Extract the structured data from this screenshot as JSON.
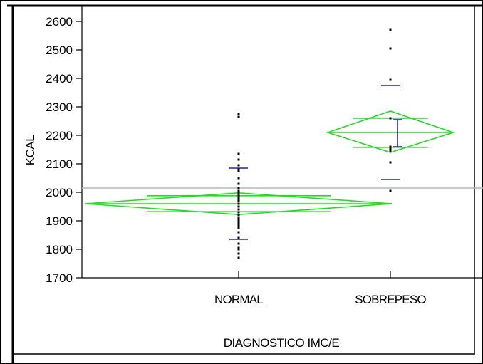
{
  "chart_data": {
    "type": "scatter",
    "xlabel": "DIAGNOSTICO IMC/E",
    "ylabel": "KCAL",
    "ylim": [
      1700,
      2600
    ],
    "yticks": [
      1700,
      1800,
      1900,
      2000,
      2100,
      2200,
      2300,
      2400,
      2500,
      2600
    ],
    "grand_mean": 2015,
    "categories": [
      "NORMAL",
      "SOBREPESO"
    ],
    "groups": [
      {
        "category": "NORMAL",
        "points": [
          1770,
          1785,
          1800,
          1805,
          1820,
          1840,
          1860,
          1875,
          1880,
          1885,
          1890,
          1893,
          1897,
          1900,
          1903,
          1910,
          1920,
          1930,
          1940,
          1950,
          1960,
          1970,
          1975,
          1980,
          1985,
          1990,
          1995,
          2000,
          2005,
          2015,
          2030,
          2050,
          2075,
          2080,
          2095,
          2115,
          2135,
          2265,
          2275
        ],
        "mean": 1960,
        "ci_upper": 1998,
        "ci_lower": 1922,
        "overlap_upper": 1988,
        "overlap_lower": 1932,
        "sd_upper": 2085,
        "sd_lower": 1835
      },
      {
        "category": "SOBREPESO",
        "points": [
          2005,
          2105,
          2145,
          2150,
          2155,
          2160,
          2260,
          2395,
          2505,
          2570
        ],
        "mean": 2210,
        "ci_upper": 2285,
        "ci_lower": 2140,
        "overlap_upper": 2260,
        "overlap_lower": 2158,
        "sd_upper": 2375,
        "sd_lower": 2045,
        "stderr_upper": 2255,
        "stderr_lower": 2160
      }
    ],
    "colors": {
      "diamond": "#22dd22",
      "sd_marks": "#2222cc",
      "grand_mean_line": "#b8b8b8",
      "points": "#000000"
    }
  }
}
